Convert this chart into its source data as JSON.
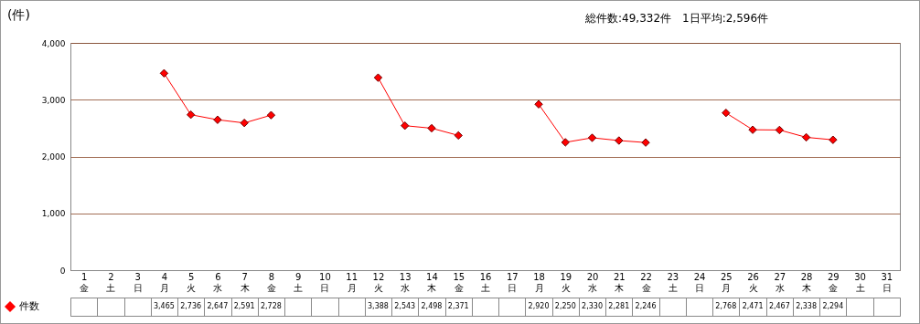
{
  "chart_data": {
    "type": "line",
    "title": "総件数:49,332件　1日平均:2,596件",
    "ylabel": "(件)",
    "categories": [
      "1\n金",
      "2\n土",
      "3\n日",
      "4\n月",
      "5\n火",
      "6\n水",
      "7\n木",
      "8\n金",
      "9\n土",
      "10\n日",
      "11\n月",
      "12\n火",
      "13\n水",
      "14\n木",
      "15\n金",
      "16\n土",
      "17\n日",
      "18\n月",
      "19\n火",
      "20\n水",
      "21\n木",
      "22\n金",
      "23\n土",
      "24\n日",
      "25\n月",
      "26\n火",
      "27\n水",
      "28\n木",
      "29\n金",
      "30\n土",
      "31\n日"
    ],
    "series": [
      {
        "name": "件数",
        "color": "#ff0000",
        "values": [
          null,
          null,
          null,
          3465,
          2736,
          2647,
          2591,
          2728,
          null,
          null,
          null,
          3388,
          2543,
          2498,
          2371,
          null,
          null,
          2920,
          2250,
          2330,
          2281,
          2246,
          null,
          null,
          2768,
          2471,
          2467,
          2338,
          2294,
          null,
          null
        ],
        "value_labels": [
          null,
          null,
          null,
          "3,465",
          "2,736",
          "2,647",
          "2,591",
          "2,728",
          null,
          null,
          null,
          "3,388",
          "2,543",
          "2,498",
          "2,371",
          null,
          null,
          "2,920",
          "2,250",
          "2,330",
          "2,281",
          "2,246",
          null,
          null,
          "2,768",
          "2,471",
          "2,467",
          "2,338",
          "2,294",
          null,
          null
        ]
      }
    ],
    "ylim": [
      0,
      4000
    ],
    "yticks": [
      0,
      {
        "value": 1000,
        "label": "1,000"
      },
      {
        "value": 2000,
        "label": "2,000"
      },
      {
        "value": 3000,
        "label": "3,000"
      },
      {
        "value": 4000,
        "label": "4,000"
      }
    ],
    "grid": "y",
    "marker": "diamond",
    "line_style": "solid",
    "legend": "bottom left"
  }
}
